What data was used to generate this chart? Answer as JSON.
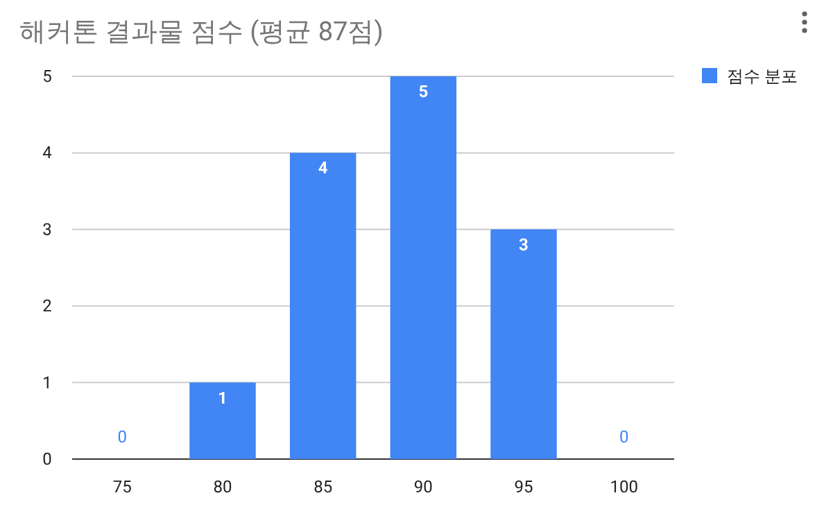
{
  "chart_data": {
    "type": "bar",
    "title": "해커톤 결과물 점수 (평균 87점)",
    "categories": [
      "75",
      "80",
      "85",
      "90",
      "95",
      "100"
    ],
    "series": [
      {
        "name": "점수 분포",
        "color": "#4285f4",
        "values": [
          0,
          1,
          4,
          5,
          3,
          0
        ]
      }
    ],
    "ylim": [
      0,
      5
    ],
    "yticks": [
      0,
      1,
      2,
      3,
      4,
      5
    ],
    "grid": "y",
    "legend": "top right",
    "data_labels": true
  }
}
